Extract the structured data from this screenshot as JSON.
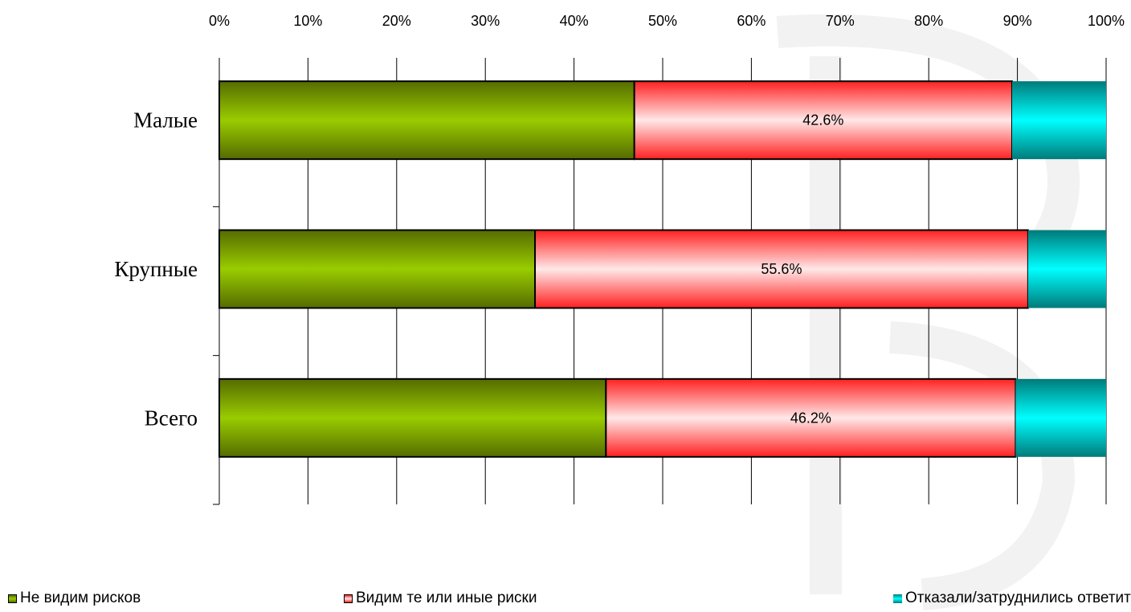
{
  "chart_data": {
    "type": "bar",
    "orientation": "horizontal",
    "stacked": true,
    "percent": true,
    "categories": [
      "Малые",
      "Крупные",
      "Всего"
    ],
    "series": [
      {
        "name": "Не видим рисков",
        "values": [
          46.8,
          35.6,
          43.6
        ],
        "color": "#8fbf00"
      },
      {
        "name": "Видим те или иные риски",
        "values": [
          42.6,
          55.6,
          46.2
        ],
        "color": "#ff3a3a"
      },
      {
        "name": "Отказали/затруднились ответить",
        "values": [
          10.6,
          8.8,
          10.2
        ],
        "color": "#00d8d8"
      }
    ],
    "data_labels": [
      "42.6%",
      "55.6%",
      "46.2%"
    ],
    "xlim": [
      0,
      100
    ],
    "x_ticks": [
      "0%",
      "10%",
      "20%",
      "30%",
      "40%",
      "50%",
      "60%",
      "70%",
      "80%",
      "90%",
      "100%"
    ],
    "xaxis_position": "top",
    "grid": true,
    "legend_position": "bottom"
  }
}
